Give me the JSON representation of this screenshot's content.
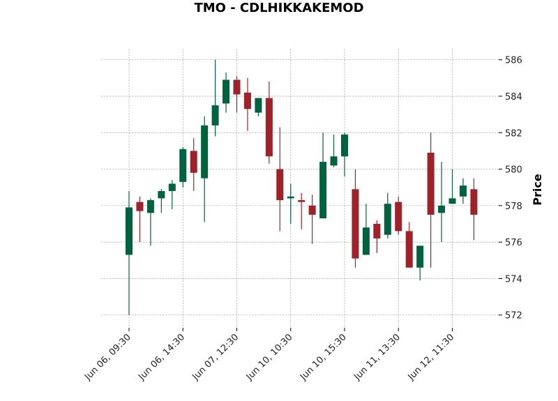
{
  "chart_data": {
    "type": "candlestick",
    "title": "TMO - CDLHIKKAKEMOD",
    "xlabel": "",
    "ylabel": "Price",
    "ylim": [
      571.3,
      586.6
    ],
    "yticks": [
      572,
      574,
      576,
      578,
      580,
      582,
      584,
      586
    ],
    "xtick_labels": [
      "Jun 06, 09:30",
      "Jun 06, 14:30",
      "Jun 07, 12:30",
      "Jun 10, 10:30",
      "Jun 10, 15:30",
      "Jun 11, 13:30",
      "Jun 12, 11:30"
    ],
    "xtick_indices": [
      0,
      5,
      10,
      15,
      20,
      25,
      30
    ],
    "grid": true,
    "y_axis_side": "right",
    "colors": {
      "up": "#006340",
      "down": "#a02128",
      "grid": "#a8a8a8"
    },
    "candles": [
      {
        "open": 575.3,
        "high": 578.8,
        "low": 572.0,
        "close": 577.9
      },
      {
        "open": 578.2,
        "high": 578.5,
        "low": 576.0,
        "close": 577.7
      },
      {
        "open": 577.6,
        "high": 578.4,
        "low": 575.8,
        "close": 578.3
      },
      {
        "open": 578.4,
        "high": 578.9,
        "low": 577.6,
        "close": 578.8
      },
      {
        "open": 578.8,
        "high": 579.4,
        "low": 577.8,
        "close": 579.2
      },
      {
        "open": 579.3,
        "high": 581.2,
        "low": 579.0,
        "close": 581.1
      },
      {
        "open": 581.0,
        "high": 581.7,
        "low": 578.8,
        "close": 579.8
      },
      {
        "open": 579.5,
        "high": 582.9,
        "low": 577.1,
        "close": 582.4
      },
      {
        "open": 582.4,
        "high": 586.0,
        "low": 581.8,
        "close": 583.5
      },
      {
        "open": 583.6,
        "high": 585.3,
        "low": 583.1,
        "close": 584.9
      },
      {
        "open": 584.9,
        "high": 585.1,
        "low": 583.1,
        "close": 584.1
      },
      {
        "open": 584.2,
        "high": 585.0,
        "low": 582.1,
        "close": 583.3
      },
      {
        "open": 583.1,
        "high": 583.9,
        "low": 582.9,
        "close": 583.9
      },
      {
        "open": 583.9,
        "high": 584.8,
        "low": 580.3,
        "close": 580.7
      },
      {
        "open": 580.0,
        "high": 582.3,
        "low": 576.6,
        "close": 578.3
      },
      {
        "open": 578.4,
        "high": 579.2,
        "low": 577.0,
        "close": 578.5
      },
      {
        "open": 578.3,
        "high": 578.7,
        "low": 576.7,
        "close": 578.2
      },
      {
        "open": 578.0,
        "high": 578.6,
        "low": 575.9,
        "close": 577.5
      },
      {
        "open": 577.3,
        "high": 582.0,
        "low": 577.3,
        "close": 580.4
      },
      {
        "open": 580.2,
        "high": 581.9,
        "low": 580.1,
        "close": 580.7
      },
      {
        "open": 580.7,
        "high": 582.0,
        "low": 579.6,
        "close": 581.9
      },
      {
        "open": 578.9,
        "high": 580.0,
        "low": 574.6,
        "close": 575.1
      },
      {
        "open": 575.3,
        "high": 578.1,
        "low": 575.3,
        "close": 576.8
      },
      {
        "open": 577.0,
        "high": 577.2,
        "low": 575.4,
        "close": 576.2
      },
      {
        "open": 576.4,
        "high": 578.7,
        "low": 576.2,
        "close": 578.1
      },
      {
        "open": 578.2,
        "high": 578.5,
        "low": 576.4,
        "close": 576.6
      },
      {
        "open": 576.6,
        "high": 577.1,
        "low": 574.6,
        "close": 574.6
      },
      {
        "open": 574.6,
        "high": 575.8,
        "low": 573.9,
        "close": 575.8
      },
      {
        "open": 580.9,
        "high": 582.0,
        "low": 574.6,
        "close": 577.5
      },
      {
        "open": 577.6,
        "high": 580.4,
        "low": 576.0,
        "close": 578.0
      },
      {
        "open": 578.1,
        "high": 580.0,
        "low": 578.1,
        "close": 578.4
      },
      {
        "open": 578.5,
        "high": 579.5,
        "low": 578.1,
        "close": 579.1
      },
      {
        "open": 578.9,
        "high": 579.5,
        "low": 576.1,
        "close": 577.5
      }
    ]
  }
}
